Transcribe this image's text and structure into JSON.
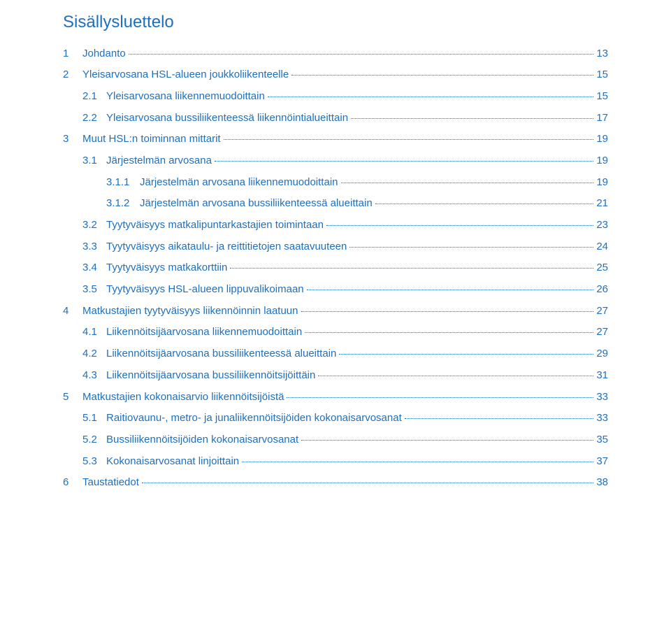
{
  "title": "Sisällysluettelo",
  "link_color": "#1f6fbf",
  "background_color": "#ffffff",
  "font": {
    "family": "Arial",
    "title_size_pt": 18,
    "body_size_pt": 11
  },
  "toc": [
    {
      "level": 1,
      "num": "1",
      "label": "Johdanto",
      "page": "13"
    },
    {
      "level": 1,
      "num": "2",
      "label": "Yleisarvosana HSL-alueen joukkoliikenteelle",
      "page": "15"
    },
    {
      "level": 2,
      "num": "2.1",
      "label": "Yleisarvosana liikennemuodoittain",
      "page": "15"
    },
    {
      "level": 2,
      "num": "2.2",
      "label": "Yleisarvosana bussiliikenteessä liikennöintialueittain",
      "page": "17"
    },
    {
      "level": 1,
      "num": "3",
      "label": "Muut HSL:n toiminnan mittarit",
      "page": "19"
    },
    {
      "level": 2,
      "num": "3.1",
      "label": "Järjestelmän arvosana",
      "page": "19"
    },
    {
      "level": 3,
      "num": "3.1.1",
      "label": "Järjestelmän arvosana liikennemuodoittain",
      "page": "19"
    },
    {
      "level": 3,
      "num": "3.1.2",
      "label": "Järjestelmän arvosana bussiliikenteessä alueittain",
      "page": "21"
    },
    {
      "level": 2,
      "num": "3.2",
      "label": "Tyytyväisyys matkalipuntarkastajien toimintaan",
      "page": "23"
    },
    {
      "level": 2,
      "num": "3.3",
      "label": "Tyytyväisyys aikataulu- ja reittitietojen saatavuuteen",
      "page": "24"
    },
    {
      "level": 2,
      "num": "3.4",
      "label": "Tyytyväisyys matkakorttiin",
      "page": "25"
    },
    {
      "level": 2,
      "num": "3.5",
      "label": "Tyytyväisyys HSL-alueen lippuvalikoimaan",
      "page": "26"
    },
    {
      "level": 1,
      "num": "4",
      "label": "Matkustajien tyytyväisyys liikennöinnin laatuun",
      "page": "27"
    },
    {
      "level": 2,
      "num": "4.1",
      "label": "Liikennöitsijäarvosana liikennemuodoittain",
      "page": "27"
    },
    {
      "level": 2,
      "num": "4.2",
      "label": "Liikennöitsijäarvosana bussiliikenteessä alueittain",
      "page": "29"
    },
    {
      "level": 2,
      "num": "4.3",
      "label": "Liikennöitsijäarvosana bussiliikennöitsijöittäin",
      "page": "31"
    },
    {
      "level": 1,
      "num": "5",
      "label": "Matkustajien kokonaisarvio liikennöitsijöistä",
      "page": "33"
    },
    {
      "level": 2,
      "num": "5.1",
      "label": "Raitiovaunu-, metro- ja junaliikennöitsijöiden kokonaisarvosanat",
      "page": "33"
    },
    {
      "level": 2,
      "num": "5.2",
      "label": "Bussiliikennöitsijöiden kokonaisarvosanat",
      "page": "35"
    },
    {
      "level": 2,
      "num": "5.3",
      "label": "Kokonaisarvosanat linjoittain",
      "page": "37"
    },
    {
      "level": 1,
      "num": "6",
      "label": "Taustatiedot",
      "page": "38"
    }
  ]
}
